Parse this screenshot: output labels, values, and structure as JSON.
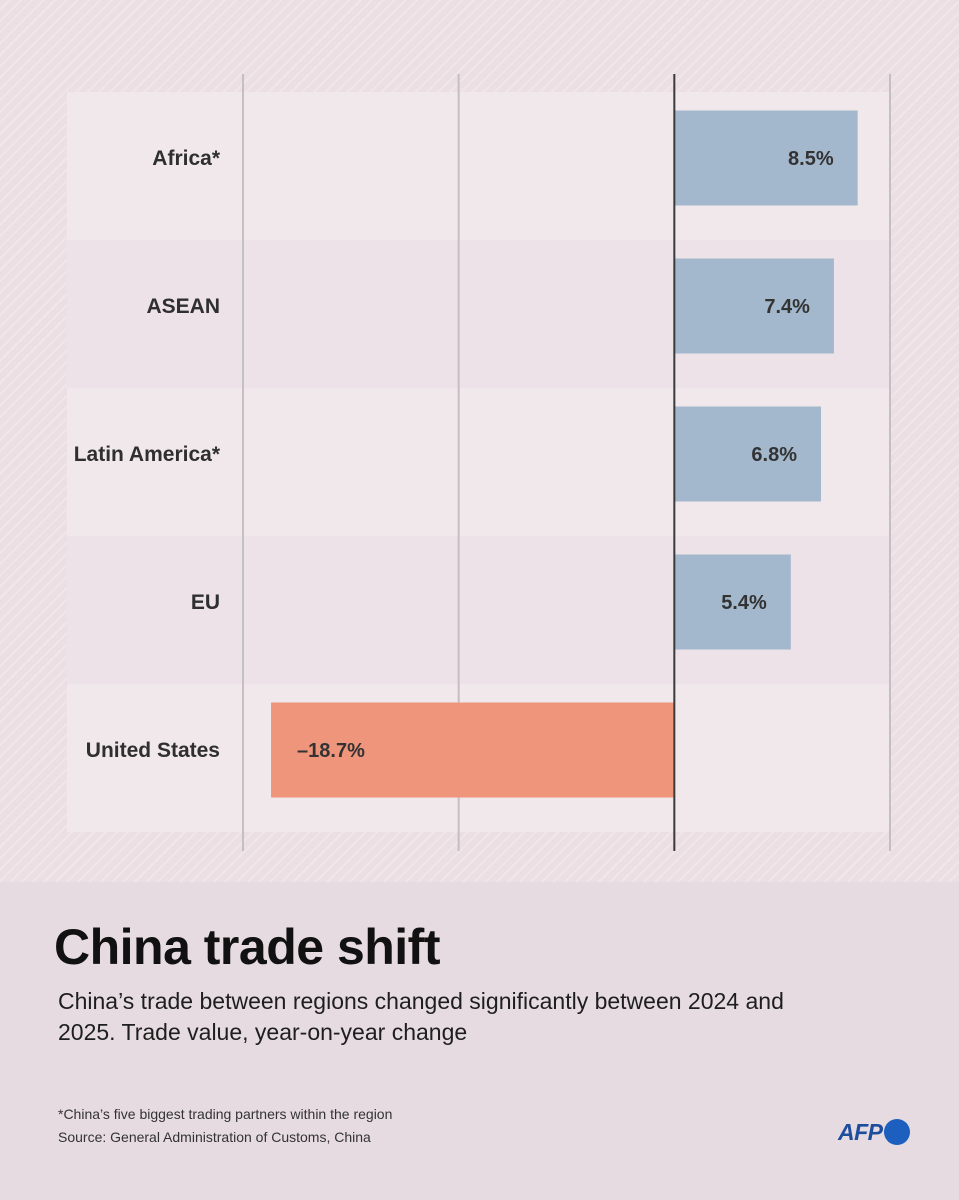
{
  "chart_data": {
    "type": "bar",
    "orientation": "horizontal",
    "categories": [
      "Africa*",
      "ASEAN",
      "Latin America*",
      "EU",
      "United States"
    ],
    "values": [
      8.5,
      7.4,
      6.8,
      5.4,
      -18.7
    ],
    "value_labels": [
      "8.5%",
      "7.4%",
      "6.8%",
      "5.4%",
      "–18.7%"
    ],
    "xlim": [
      -20,
      10
    ],
    "gridlines": [
      -20,
      -10,
      0,
      10
    ],
    "grid": true,
    "colors": {
      "positive": "#a3b8cc",
      "negative": "#ee957b"
    },
    "title": "China trade shift",
    "subtitle": "China’s trade between regions changed significantly between 2024 and 2025. Trade value, year-on-year change",
    "xlabel": "",
    "ylabel": ""
  },
  "footnote": "*China’s five biggest trading partners within the region",
  "source": "Source: General Administration of Customs, China",
  "logo": {
    "text": "AFP",
    "icon": "afp-dot-icon",
    "color": "#1d5fbf"
  }
}
